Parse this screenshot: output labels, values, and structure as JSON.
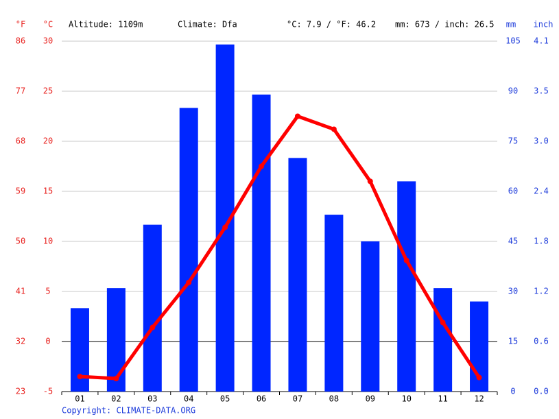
{
  "chart_data": {
    "type": "bar",
    "fahrenheit_label": "°F",
    "celsius_label": "°C",
    "altitude": "Altitude: 1109m",
    "climate": "Climate: Dfa",
    "mean_temperature": "°C: 7.9 / °F: 46.2",
    "total_precipitation": "mm: 673 / inch: 26.5",
    "mm_label": "mm",
    "inch_label": "inch",
    "copyright": "Copyright: CLIMATE-DATA.ORG",
    "categories": [
      "01",
      "02",
      "03",
      "04",
      "05",
      "06",
      "07",
      "08",
      "09",
      "10",
      "11",
      "12"
    ],
    "series": [
      {
        "type": "bar",
        "axis": "y2",
        "color": "#0026ff",
        "values": [
          25,
          31,
          50,
          85,
          104,
          89,
          70,
          53,
          45,
          63,
          31,
          27
        ]
      },
      {
        "type": "line",
        "color": "#ff0000",
        "values": [
          -3.5,
          -3.7,
          1.4,
          5.9,
          11.4,
          17.5,
          22.5,
          21.2,
          16.0,
          8.1,
          1.9,
          -3.6
        ]
      }
    ],
    "ylim": [
      -5,
      30
    ],
    "yticks": [
      -5,
      0,
      5,
      10,
      15,
      20,
      25,
      30
    ],
    "y2lim": [
      0,
      105
    ],
    "y2ticks": [
      0,
      15,
      30,
      45,
      60,
      75,
      90,
      105
    ],
    "flim": [
      23,
      86
    ],
    "fticks": [
      23,
      32,
      41,
      50,
      59,
      68,
      77,
      86
    ],
    "inchlim": [
      0,
      4.134
    ],
    "inchticks": [
      {
        "value": 0,
        "label": "0.0"
      },
      {
        "value": 0.591,
        "label": "0.6"
      },
      {
        "value": 1.181,
        "label": "1.2"
      },
      {
        "value": 1.772,
        "label": "1.8"
      },
      {
        "value": 2.362,
        "label": "2.4"
      },
      {
        "value": 2.953,
        "label": "3.0"
      },
      {
        "value": 3.543,
        "label": "3.5"
      },
      {
        "value": 4.134,
        "label": "4.1"
      }
    ],
    "grid": true
  }
}
